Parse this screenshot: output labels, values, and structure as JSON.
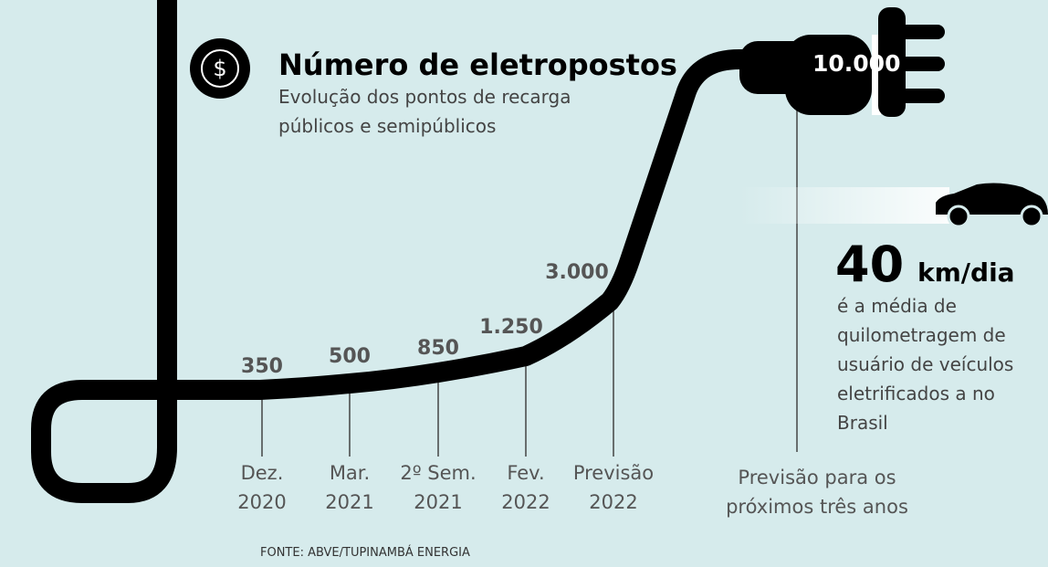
{
  "header": {
    "title": "Número de eletropostos",
    "subtitle_lines": [
      "Evolução dos pontos de recarga",
      "públicos e semipúblicos"
    ]
  },
  "points": [
    {
      "value": "350",
      "period": [
        "Dez.",
        "2020"
      ]
    },
    {
      "value": "500",
      "period": [
        "Mar.",
        "2021"
      ]
    },
    {
      "value": "850",
      "period": [
        "2º Sem.",
        "2021"
      ]
    },
    {
      "value": "1.250",
      "period": [
        "Fev.",
        "2022"
      ]
    },
    {
      "value": "3.000",
      "period": [
        "Previsão",
        "2022"
      ]
    }
  ],
  "forecast": {
    "value": "10.000",
    "period": [
      "Previsão para os",
      "próximos três anos"
    ]
  },
  "stat": {
    "number": "40",
    "unit": "km/dia",
    "text_lines": [
      "é a média de",
      "quilometragem de",
      "usuário de veículos",
      "eletrificados a no",
      "Brasil"
    ]
  },
  "source": "FONTE: ABVE/TUPINAMBÁ ENERGIA"
}
